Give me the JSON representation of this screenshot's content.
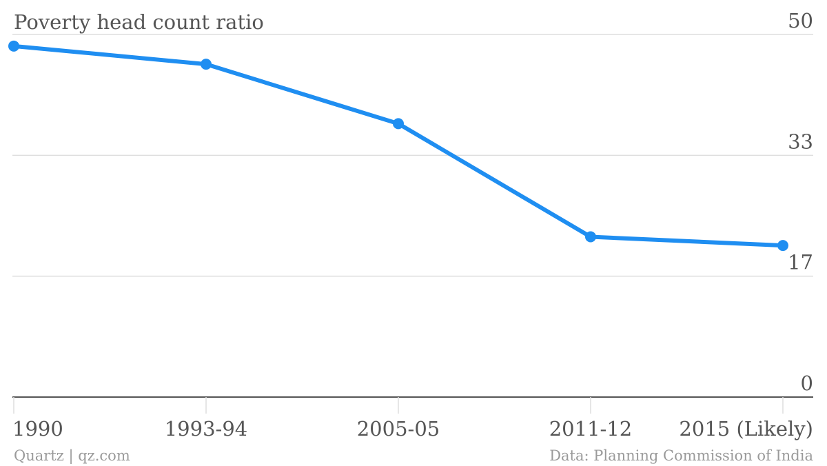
{
  "chart_data": {
    "type": "line",
    "title": "Poverty head count ratio",
    "categories": [
      "1990",
      "1993-94",
      "2005-05",
      "2011-12",
      "2015 (Likely)"
    ],
    "series": [
      {
        "values": [
          48.4,
          45.9,
          37.7,
          22.1,
          20.9
        ],
        "color": "#1f8ef1"
      }
    ],
    "ylim": [
      0,
      50
    ],
    "yticks": [
      "0",
      "17",
      "33",
      "50"
    ],
    "ytick_values": [
      0,
      16.67,
      33.33,
      50
    ],
    "grid": true,
    "y_axis_side": "right",
    "legend": "none"
  },
  "footer": {
    "source_left": "Quartz | qz.com",
    "source_right": "Data: Planning Commission of India"
  }
}
